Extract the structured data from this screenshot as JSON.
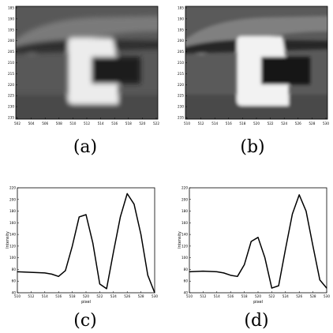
{
  "figure": {
    "panels": [
      {
        "id": "a",
        "caption": "(a)",
        "x_ticks": [
          "502",
          "504",
          "506",
          "508",
          "510",
          "512",
          "514",
          "516",
          "518",
          "520",
          "522"
        ],
        "y_ticks": [
          "185",
          "190",
          "195",
          "200",
          "205",
          "210",
          "215",
          "220",
          "225",
          "230",
          "235"
        ],
        "glyph": "C",
        "variant": "blurred"
      },
      {
        "id": "b",
        "caption": "(b)",
        "x_ticks": [
          "510",
          "512",
          "514",
          "516",
          "518",
          "520",
          "522",
          "524",
          "526",
          "528",
          "530"
        ],
        "y_ticks": [
          "185",
          "190",
          "195",
          "200",
          "205",
          "210",
          "215",
          "220",
          "225",
          "230",
          "235"
        ],
        "glyph": "C",
        "variant": "sharpened"
      }
    ]
  },
  "chart_data": [
    {
      "type": "line",
      "caption": "(c)",
      "xlabel": "pixel",
      "ylabel": "Intensity",
      "xlim": [
        510,
        530
      ],
      "ylim": [
        40,
        220
      ],
      "x_ticks": [
        510,
        512,
        514,
        516,
        518,
        520,
        522,
        524,
        526,
        528,
        530
      ],
      "y_ticks": [
        40,
        60,
        80,
        100,
        120,
        140,
        160,
        180,
        200,
        220
      ],
      "grid": false,
      "series": [
        {
          "x": [
            510,
            512,
            514,
            515,
            516,
            517,
            518,
            519,
            520,
            521,
            522,
            523,
            524,
            525,
            526,
            527,
            528,
            529,
            530
          ],
          "y": [
            76,
            75,
            74,
            72,
            68,
            78,
            120,
            170,
            174,
            125,
            55,
            47,
            110,
            170,
            210,
            192,
            140,
            70,
            40
          ]
        }
      ]
    },
    {
      "type": "line",
      "caption": "(d)",
      "xlabel": "pixel",
      "ylabel": "Intensity",
      "xlim": [
        510,
        530
      ],
      "ylim": [
        40,
        220
      ],
      "x_ticks": [
        510,
        512,
        514,
        516,
        518,
        520,
        522,
        524,
        526,
        528,
        530
      ],
      "y_ticks": [
        40,
        60,
        80,
        100,
        120,
        140,
        160,
        180,
        200,
        220
      ],
      "grid": false,
      "series": [
        {
          "x": [
            510,
            512,
            514,
            515,
            516,
            517,
            518,
            519,
            520,
            521,
            522,
            523,
            524,
            525,
            526,
            527,
            528,
            529,
            530
          ],
          "y": [
            76,
            77,
            76,
            74,
            70,
            68,
            88,
            128,
            135,
            100,
            48,
            52,
            115,
            175,
            208,
            180,
            120,
            62,
            48
          ]
        }
      ]
    }
  ]
}
